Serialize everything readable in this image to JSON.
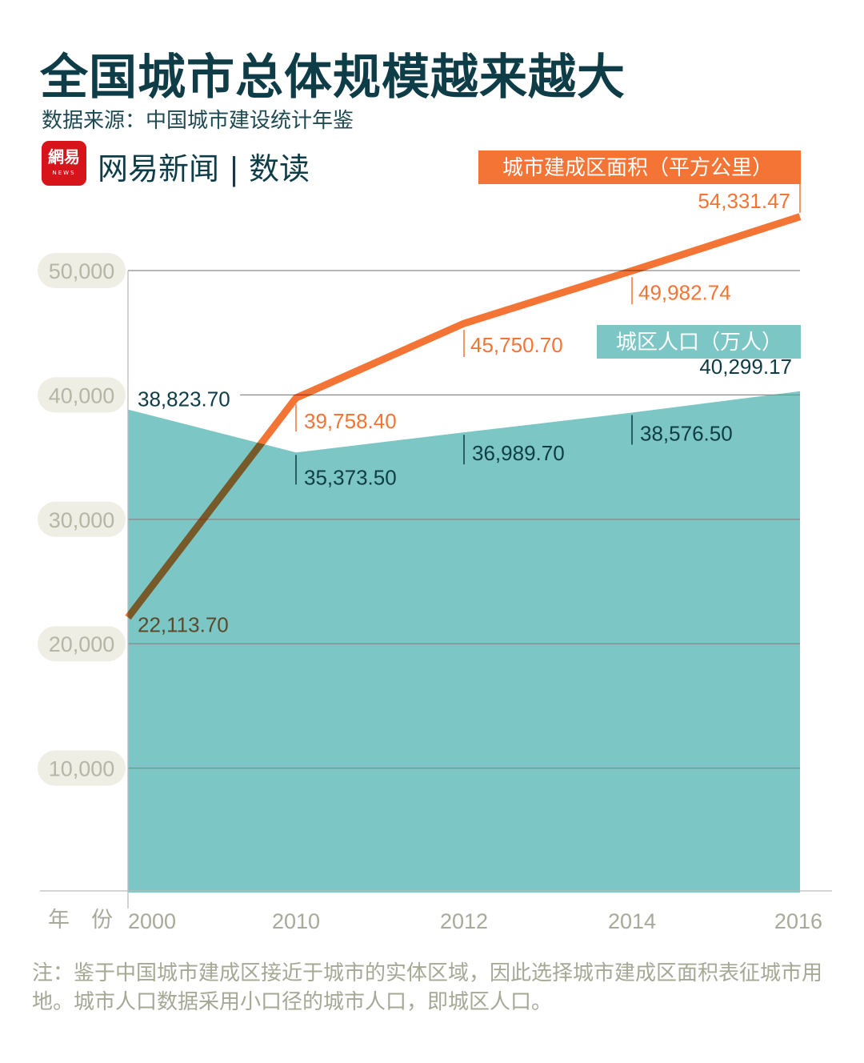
{
  "header": {
    "title": "全国城市总体规模越来越大",
    "source": "数据来源：中国城市建设统计年鉴",
    "logo_text": "網易",
    "logo_sub": "NEWS",
    "brand": "网易新闻 | 数读"
  },
  "note": "注：鉴于中国城市建成区接近于城市的实体区域，因此选择城市建成区面积表征城市用地。城市人口数据采用小口径的城市人口，即城区人口。",
  "colors": {
    "title": "#0f3d47",
    "area": "#7cc6c6",
    "line": "#f47435",
    "grid": "#8a8a8a",
    "axis_label": "#b5b6a6"
  },
  "chart_data": {
    "type": "line+area",
    "categories": [
      "2000",
      "2010",
      "2012",
      "2014",
      "2016"
    ],
    "x_axis_label": "年　份",
    "yticks": [
      "10,000",
      "20,000",
      "30,000",
      "40,000",
      "50,000"
    ],
    "ytick_values": [
      10000,
      20000,
      30000,
      40000,
      50000
    ],
    "ylim": [
      0,
      55000
    ],
    "grid": true,
    "series": [
      {
        "name": "城区人口（万人）",
        "type": "area",
        "color": "#7cc6c6",
        "values": [
          38823.7,
          35373.5,
          36989.7,
          38576.5,
          40299.17
        ],
        "labels": [
          "38,823.70",
          "35,373.50",
          "36,989.70",
          "38,576.50",
          "40,299.17"
        ]
      },
      {
        "name": "城市建成区面积（平方公里）",
        "type": "line",
        "color": "#f47435",
        "values": [
          22113.7,
          39758.4,
          45750.7,
          49982.74,
          54331.47
        ],
        "labels": [
          "22,113.70",
          "39,758.40",
          "45,750.70",
          "49,982.74",
          "54,331.47"
        ]
      }
    ]
  }
}
